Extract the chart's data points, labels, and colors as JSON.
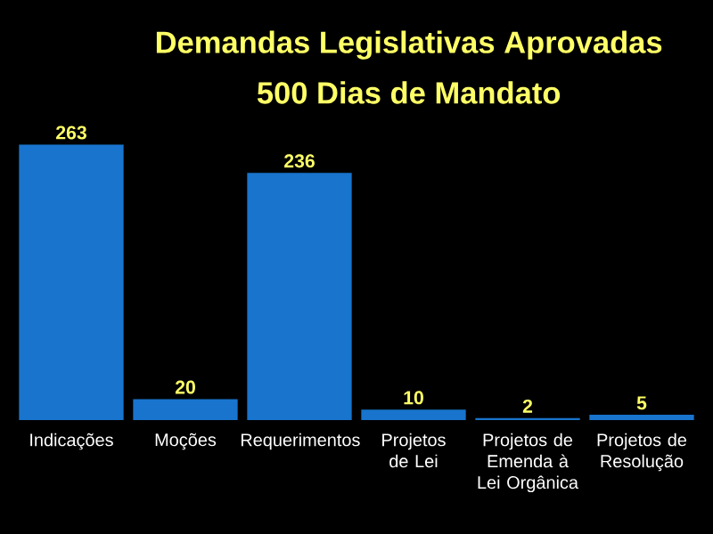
{
  "chart_data": {
    "type": "bar",
    "title": "Demandas Legislativas Aprovadas",
    "subtitle": "500 Dias de Mandato",
    "categories": [
      "Indicações",
      "Moções",
      "Requerimentos",
      "Projetos de Lei",
      "Projetos de Emenda à Lei Orgânica",
      "Projetos de Resolução"
    ],
    "values": [
      263,
      20,
      236,
      10,
      2,
      5
    ],
    "color": "#1874cd",
    "data_labels": true
  }
}
